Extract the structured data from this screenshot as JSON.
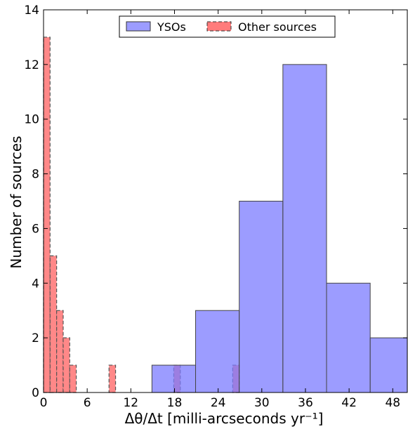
{
  "chart_data": {
    "type": "bar",
    "xlabel": "Δθ/Δt [milli-arcseconds yr⁻¹]",
    "ylabel": "Number of sources",
    "xlim": [
      0,
      50
    ],
    "ylim": [
      0,
      14
    ],
    "xticks": [
      0,
      6,
      12,
      18,
      24,
      30,
      36,
      42,
      48
    ],
    "yticks": [
      0,
      2,
      4,
      6,
      8,
      10,
      12,
      14
    ],
    "legend_position": "top-center",
    "series": [
      {
        "name": "YSOs",
        "color": "#7b7bff",
        "style": "solid",
        "bins": [
          {
            "x0": 14.9,
            "x1": 20.9,
            "value": 1
          },
          {
            "x0": 20.9,
            "x1": 26.9,
            "value": 3
          },
          {
            "x0": 26.9,
            "x1": 32.9,
            "value": 7
          },
          {
            "x0": 32.9,
            "x1": 38.9,
            "value": 12
          },
          {
            "x0": 38.9,
            "x1": 44.9,
            "value": 4
          },
          {
            "x0": 44.9,
            "x1": 50.9,
            "value": 2
          }
        ]
      },
      {
        "name": "Other sources",
        "color": "#ff7b7b",
        "style": "dashed",
        "bins": [
          {
            "x0": 0.0,
            "x1": 0.9,
            "value": 13
          },
          {
            "x0": 0.9,
            "x1": 1.8,
            "value": 5
          },
          {
            "x0": 1.8,
            "x1": 2.7,
            "value": 3
          },
          {
            "x0": 2.7,
            "x1": 3.6,
            "value": 2
          },
          {
            "x0": 3.6,
            "x1": 4.5,
            "value": 1
          },
          {
            "x0": 9.0,
            "x1": 9.9,
            "value": 1
          },
          {
            "x0": 17.9,
            "x1": 18.8,
            "value": 1
          },
          {
            "x0": 26.0,
            "x1": 26.9,
            "value": 1
          }
        ]
      }
    ]
  }
}
